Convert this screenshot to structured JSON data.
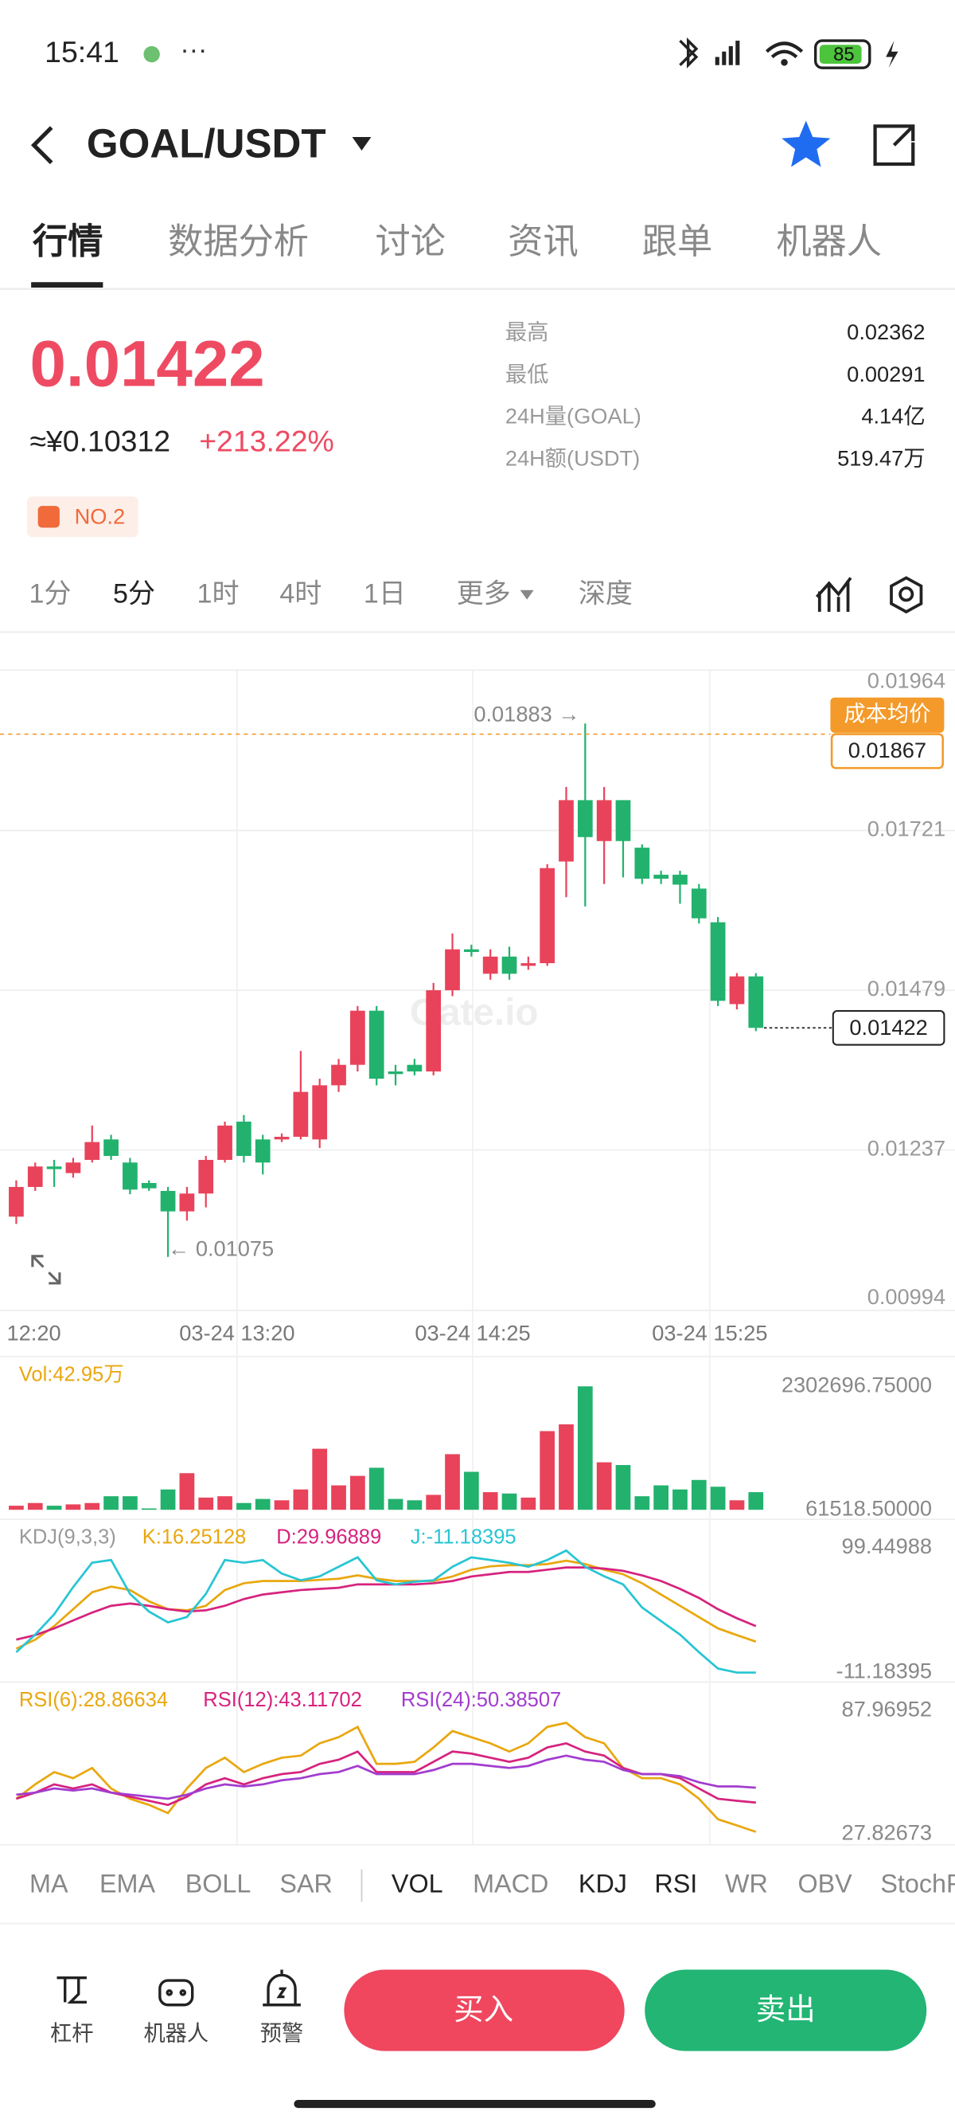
{
  "status_bar": {
    "time": "15:41",
    "battery": "85"
  },
  "header": {
    "pair": "GOAL/USDT"
  },
  "tabs": [
    "行情",
    "数据分析",
    "讨论",
    "资讯",
    "跟单",
    "机器人"
  ],
  "ticker": {
    "price": "0.01422",
    "cny": "≈¥0.10312",
    "change": "+213.22%",
    "rank": "NO.2",
    "stats": [
      {
        "label": "最高",
        "value": "0.02362"
      },
      {
        "label": "最低",
        "value": "0.00291"
      },
      {
        "label": "24H量(GOAL)",
        "value": "4.14亿"
      },
      {
        "label": "24H额(USDT)",
        "value": "519.47万"
      }
    ]
  },
  "periods": [
    "1分",
    "5分",
    "1时",
    "4时",
    "1日",
    "更多",
    "深度"
  ],
  "chart_data": {
    "type": "candlestick",
    "watermark": "Gate.io",
    "up_color": "#e8435a",
    "down_color": "#22b26e",
    "time_labels": [
      "12:20",
      "03-24 13:20",
      "03-24 14:25",
      "03-24 15:25"
    ],
    "candles": [
      [
        0.01136,
        0.01191,
        0.01125,
        0.01181
      ],
      [
        0.01181,
        0.01218,
        0.01175,
        0.01212
      ],
      [
        0.01212,
        0.01222,
        0.01181,
        0.01208
      ],
      [
        0.01202,
        0.01225,
        0.01195,
        0.01218
      ],
      [
        0.01222,
        0.01274,
        0.01218,
        0.01249
      ],
      [
        0.01253,
        0.0126,
        0.01222,
        0.01228
      ],
      [
        0.01218,
        0.01225,
        0.0117,
        0.01177
      ],
      [
        0.01187,
        0.01191,
        0.01175,
        0.01179
      ],
      [
        0.01175,
        0.01181,
        0.01075,
        0.01144
      ],
      [
        0.01144,
        0.01181,
        0.0113,
        0.01171
      ],
      [
        0.01171,
        0.01228,
        0.0115,
        0.01222
      ],
      [
        0.01222,
        0.0128,
        0.01218,
        0.01274
      ],
      [
        0.0128,
        0.0129,
        0.01218,
        0.01228
      ],
      [
        0.01253,
        0.0126,
        0.012,
        0.01218
      ],
      [
        0.01253,
        0.01262,
        0.01249,
        0.01257
      ],
      [
        0.01257,
        0.01387,
        0.01253,
        0.01325
      ],
      [
        0.01253,
        0.01345,
        0.0124,
        0.01335
      ],
      [
        0.01335,
        0.01375,
        0.01325,
        0.01366
      ],
      [
        0.01366,
        0.01455,
        0.01356,
        0.01448
      ],
      [
        0.01448,
        0.01455,
        0.01335,
        0.01345
      ],
      [
        0.01356,
        0.01366,
        0.01335,
        0.01352
      ],
      [
        0.01366,
        0.01375,
        0.0135,
        0.01356
      ],
      [
        0.01356,
        0.0149,
        0.0135,
        0.01479
      ],
      [
        0.01479,
        0.01565,
        0.0147,
        0.01541
      ],
      [
        0.01541,
        0.01548,
        0.0153,
        0.01537
      ],
      [
        0.01504,
        0.01541,
        0.01495,
        0.0153
      ],
      [
        0.0153,
        0.01545,
        0.01495,
        0.01504
      ],
      [
        0.01516,
        0.0153,
        0.0151,
        0.0152
      ],
      [
        0.0152,
        0.0167,
        0.01516,
        0.01664
      ],
      [
        0.01674,
        0.01787,
        0.0162,
        0.01767
      ],
      [
        0.01767,
        0.01883,
        0.01606,
        0.01711
      ],
      [
        0.01705,
        0.01787,
        0.0164,
        0.01767
      ],
      [
        0.01767,
        0.01767,
        0.0165,
        0.01705
      ],
      [
        0.01695,
        0.017,
        0.0164,
        0.01648
      ],
      [
        0.01654,
        0.0166,
        0.0164,
        0.01648
      ],
      [
        0.01654,
        0.0166,
        0.0161,
        0.01639
      ],
      [
        0.01633,
        0.0164,
        0.0158,
        0.01588
      ],
      [
        0.01582,
        0.0159,
        0.01455,
        0.01463
      ],
      [
        0.01458,
        0.01505,
        0.0145,
        0.015
      ],
      [
        0.015,
        0.01505,
        0.01417,
        0.01422
      ]
    ],
    "ylim": [
      0.00994,
      0.01964
    ],
    "yticks": [
      0.01964,
      0.01721,
      0.01479,
      0.01237,
      0.00994
    ],
    "grid": true,
    "high_label": "0.01883 →",
    "low_label": "← 0.01075",
    "cost_label": "成本均价",
    "cost_price": 0.01867,
    "last_price": 0.01422,
    "volume": {
      "label": "Vol:42.95万",
      "values": [
        135403,
        184660,
        135403,
        160031,
        184660,
        307801,
        307801,
        86147,
        430943,
        726463,
        283172,
        307801,
        184660,
        258545,
        233915,
        430943,
        1169792,
        504828,
        677226,
        824995,
        258545,
        233915,
        332430,
        1071279,
        751109,
        381684,
        357061,
        283172,
        1489939,
        1613081,
        2302696.75,
        923509,
        874253,
        307801,
        504828,
        430943,
        603341,
        480200,
        233915,
        381684
      ],
      "ylim": [
        61518.5,
        2302696.75
      ],
      "yticks": [
        {
          "value": 2302696.75,
          "label": "2302696.75000"
        },
        {
          "value": 61518.5,
          "label": "61518.50000"
        }
      ]
    },
    "kdj": {
      "title": "KDJ(9,3,3)",
      "ylim": [
        -11.18395,
        99.44988
      ],
      "yticks": [
        99.44988,
        -11.18395
      ],
      "series": [
        {
          "name": "K:16.25128",
          "color": "#e9a70f",
          "values": [
            10,
            18,
            30,
            45,
            60,
            65,
            62,
            52,
            45,
            44,
            48,
            62,
            68,
            70,
            70,
            70,
            71,
            72,
            75,
            72,
            70,
            70,
            70,
            74,
            80,
            83,
            84,
            84,
            85,
            88,
            85,
            80,
            76,
            68,
            58,
            48,
            38,
            28,
            22,
            16.25128
          ]
        },
        {
          "name": "D:29.96889",
          "color": "#d6237e",
          "values": [
            18,
            22,
            28,
            35,
            42,
            48,
            50,
            48,
            45,
            43,
            44,
            48,
            54,
            58,
            60,
            62,
            63,
            64,
            67,
            67,
            67,
            67,
            68,
            70,
            74,
            76,
            78,
            78,
            80,
            82,
            82,
            81,
            79,
            75,
            70,
            63,
            55,
            45,
            37,
            29.96889
          ]
        },
        {
          "name": "J:-11.18395",
          "color": "#27c5d3",
          "values": [
            6.9,
            22.5,
            40.5,
            64.6,
            86.2,
            88.6,
            58.6,
            42.9,
            33.3,
            38.1,
            58.6,
            88.6,
            86.2,
            88.6,
            76.6,
            70.6,
            74.2,
            82.6,
            91,
            70.6,
            67,
            69.4,
            70.6,
            82.6,
            91,
            88.6,
            86.2,
            82.6,
            88.6,
            97,
            82.6,
            74.2,
            67,
            46.5,
            34.5,
            22.5,
            6.9,
            -7.6,
            -11.18395,
            -11.18395
          ]
        }
      ]
    },
    "rsi": {
      "ylim": [
        27.82673,
        87.96952
      ],
      "yticks": [
        87.96952,
        27.82673
      ],
      "series": [
        {
          "name": "RSI(6):28.86634",
          "color": "#e9a70f",
          "values": [
            45,
            52,
            58,
            55,
            60,
            50,
            45,
            42,
            38,
            50,
            60,
            65,
            58,
            62,
            65,
            66,
            72,
            75,
            80,
            62,
            62,
            63,
            70,
            78,
            75,
            72,
            68,
            72,
            80,
            82,
            75,
            72,
            60,
            55,
            55,
            52,
            45,
            35,
            32,
            28.86634
          ]
        },
        {
          "name": "RSI(12):43.11702",
          "color": "#d6237e",
          "values": [
            45,
            48,
            52,
            50,
            52,
            48,
            46,
            44,
            42,
            46,
            52,
            55,
            52,
            55,
            57,
            58,
            62,
            64,
            68,
            58,
            58,
            58,
            63,
            68,
            67,
            65,
            63,
            65,
            70,
            72,
            68,
            66,
            60,
            57,
            57,
            55,
            50,
            45,
            44,
            43.11702
          ]
        },
        {
          "name": "RSI(24):50.38507",
          "color": "#a23ccf",
          "values": [
            47,
            48,
            50,
            49,
            50,
            48,
            47,
            46,
            45,
            47,
            50,
            52,
            51,
            52,
            54,
            55,
            57,
            58,
            61,
            57,
            57,
            57,
            59,
            62,
            62,
            61,
            60,
            61,
            64,
            66,
            64,
            63,
            59,
            57,
            57,
            56,
            53,
            51,
            51,
            50.38507
          ]
        }
      ]
    }
  },
  "indicator_tabs": [
    "MA",
    "EMA",
    "BOLL",
    "SAR",
    "VOL",
    "MACD",
    "KDJ",
    "RSI",
    "WR",
    "OBV",
    "StochRSI"
  ],
  "bottom_bar": {
    "tools": [
      "杠杆",
      "机器人",
      "预警"
    ],
    "buy": "买入",
    "sell": "卖出"
  }
}
